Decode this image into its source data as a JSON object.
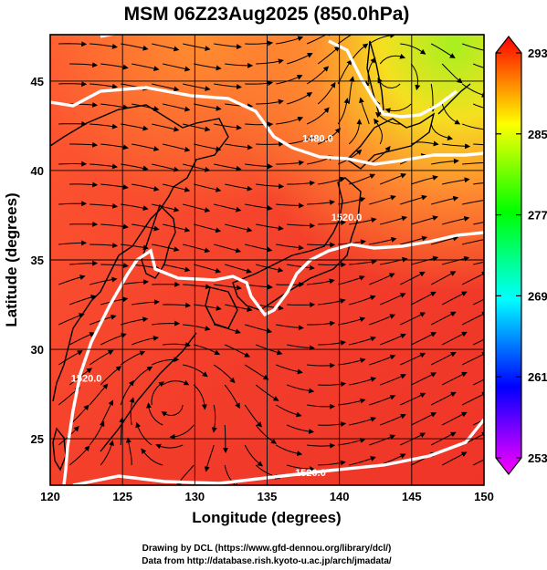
{
  "chart_data": {
    "type": "heatmap",
    "title": "MSM 06Z23Aug2025 (850.0hPa)",
    "xlabel": "Longitude (degrees)",
    "ylabel": "Latitude  (degrees)",
    "xlim": [
      120,
      150
    ],
    "ylim": [
      22.4,
      47.6
    ],
    "x_ticks": [
      120,
      125,
      130,
      135,
      140,
      145,
      150
    ],
    "y_ticks": [
      25,
      30,
      35,
      40,
      45
    ],
    "grid": true,
    "colorbar": {
      "range": [
        253,
        293
      ],
      "ticks": [
        253,
        261,
        269,
        277,
        285,
        293
      ],
      "colors": [
        "#ff00ff",
        "#0000ff",
        "#00ffff",
        "#00ff00",
        "#ffff00",
        "#ff0000"
      ]
    },
    "contours": [
      {
        "label": "1480.0",
        "lon": 138.5,
        "lat": 41.6
      },
      {
        "label": "1520.0",
        "lon": 140.5,
        "lat": 37.2
      },
      {
        "label": "1520.0",
        "lon": 122.5,
        "lat": 28.2
      },
      {
        "label": "1520.0",
        "lon": 138.0,
        "lat": 22.9
      }
    ],
    "variable_note": "temperature shading (K) with streamlines and geopotential height contours"
  },
  "credits": {
    "line1": "Drawing by DCL (https://www.gfd-dennou.org/library/dcl/)",
    "line2": "Data from http://database.rish.kyoto-u.ac.jp/arch/jmadata/"
  }
}
